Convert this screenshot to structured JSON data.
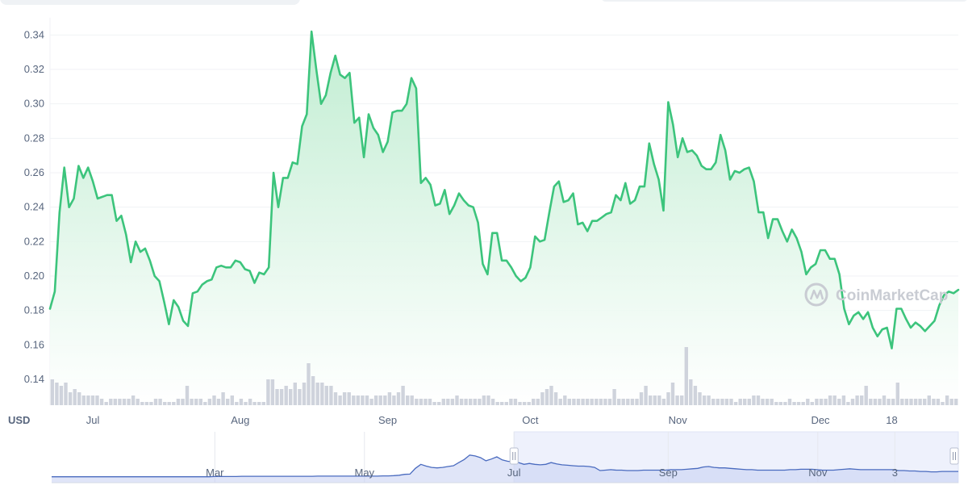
{
  "chart_data": {
    "type": "area",
    "currency_label": "USD",
    "watermark": "CoinMarketCap",
    "colors": {
      "line": "#3cc47c",
      "fill_top": "#bdeccf",
      "fill_bottom": "#ffffff",
      "volume": "#cfd3dc",
      "navigator_line": "#4a6bbf",
      "navigator_fill": "#c7d0f3"
    },
    "y_axis": {
      "min": 0.125,
      "max": 0.35,
      "ticks": [
        "0.14",
        "0.16",
        "0.18",
        "0.20",
        "0.22",
        "0.24",
        "0.26",
        "0.28",
        "0.30",
        "0.32",
        "0.34"
      ]
    },
    "x_axis": {
      "labels": [
        {
          "text": "Jul",
          "index": 9
        },
        {
          "text": "Aug",
          "index": 40
        },
        {
          "text": "Sep",
          "index": 71
        },
        {
          "text": "Oct",
          "index": 101
        },
        {
          "text": "Nov",
          "index": 132
        },
        {
          "text": "Dec",
          "index": 162
        },
        {
          "text": "18",
          "index": 177
        }
      ]
    },
    "grid": "horizontal",
    "series": [
      {
        "values": [
          0.181,
          0.191,
          0.237,
          0.263,
          0.24,
          0.245,
          0.264,
          0.257,
          0.263,
          0.255,
          0.245,
          0.246,
          0.247,
          0.247,
          0.232,
          0.235,
          0.224,
          0.208,
          0.22,
          0.214,
          0.216,
          0.209,
          0.2,
          0.197,
          0.185,
          0.172,
          0.186,
          0.182,
          0.174,
          0.171,
          0.19,
          0.191,
          0.195,
          0.197,
          0.198,
          0.205,
          0.206,
          0.205,
          0.205,
          0.209,
          0.208,
          0.204,
          0.203,
          0.196,
          0.202,
          0.201,
          0.205,
          0.26,
          0.24,
          0.257,
          0.257,
          0.266,
          0.265,
          0.287,
          0.294,
          0.342,
          0.32,
          0.3,
          0.305,
          0.318,
          0.328,
          0.317,
          0.315,
          0.318,
          0.289,
          0.292,
          0.269,
          0.294,
          0.286,
          0.282,
          0.272,
          0.278,
          0.295,
          0.296,
          0.296,
          0.3,
          0.315,
          0.309,
          0.254,
          0.257,
          0.253,
          0.241,
          0.242,
          0.25,
          0.236,
          0.241,
          0.248,
          0.244,
          0.241,
          0.24,
          0.231,
          0.207,
          0.201,
          0.225,
          0.225,
          0.209,
          0.209,
          0.205,
          0.2,
          0.197,
          0.199,
          0.205,
          0.223,
          0.22,
          0.221,
          0.237,
          0.252,
          0.255,
          0.243,
          0.244,
          0.248,
          0.23,
          0.231,
          0.226,
          0.232,
          0.232,
          0.234,
          0.236,
          0.237,
          0.247,
          0.244,
          0.254,
          0.242,
          0.244,
          0.252,
          0.252,
          0.277,
          0.265,
          0.256,
          0.238,
          0.301,
          0.288,
          0.269,
          0.28,
          0.272,
          0.273,
          0.27,
          0.264,
          0.262,
          0.262,
          0.266,
          0.282,
          0.273,
          0.256,
          0.261,
          0.26,
          0.262,
          0.263,
          0.255,
          0.237,
          0.237,
          0.222,
          0.233,
          0.233,
          0.226,
          0.22,
          0.227,
          0.222,
          0.214,
          0.201,
          0.205,
          0.207,
          0.215,
          0.215,
          0.21,
          0.21,
          0.201,
          0.181,
          0.172,
          0.177,
          0.179,
          0.175,
          0.179,
          0.17,
          0.165,
          0.169,
          0.17,
          0.158,
          0.181,
          0.181,
          0.175,
          0.17,
          0.173,
          0.171,
          0.168,
          0.171,
          0.174,
          0.183,
          0.189,
          0.191,
          0.19,
          0.192
        ]
      }
    ],
    "volume": {
      "values": [
        8,
        7,
        6,
        7,
        4,
        5,
        4,
        3,
        3,
        3,
        3,
        2,
        1,
        2,
        2,
        2,
        2,
        2,
        3,
        2,
        1,
        1,
        1,
        2,
        2,
        1,
        1,
        1,
        2,
        2,
        6,
        2,
        2,
        2,
        1,
        2,
        3,
        2,
        4,
        2,
        3,
        1,
        2,
        1,
        2,
        1,
        1,
        1,
        8,
        8,
        5,
        5,
        6,
        5,
        7,
        5,
        7,
        13,
        9,
        7,
        7,
        6,
        6,
        4,
        3,
        4,
        4,
        3,
        3,
        3,
        3,
        2,
        3,
        3,
        3,
        4,
        3,
        4,
        6,
        3,
        3,
        2,
        2,
        2,
        2,
        1,
        1,
        2,
        2,
        2,
        3,
        2,
        2,
        2,
        2,
        2,
        3,
        3,
        2,
        1,
        1,
        1,
        2,
        2,
        1,
        1,
        1,
        2,
        2,
        4,
        5,
        6,
        4,
        2,
        3,
        2,
        2,
        2,
        2,
        2,
        2,
        2,
        2,
        2,
        2,
        5,
        2,
        2,
        2,
        2,
        2,
        4,
        6,
        3,
        3,
        3,
        2,
        4,
        7,
        3,
        3,
        18,
        8,
        6,
        4,
        3,
        3,
        2,
        2,
        2,
        2,
        2,
        1,
        2,
        2,
        2,
        3,
        3,
        2,
        2,
        2,
        1,
        1,
        1,
        2,
        1,
        1,
        1,
        2,
        1,
        2,
        2,
        2,
        3,
        3,
        2,
        3,
        1,
        2,
        3,
        3,
        6,
        2,
        2,
        2,
        3,
        2,
        2,
        7,
        2,
        2,
        2,
        2,
        2,
        2,
        3,
        2,
        2,
        1,
        3,
        2,
        2
      ]
    },
    "navigator": {
      "labels": [
        {
          "text": "Mar",
          "pos": 0.18
        },
        {
          "text": "May",
          "pos": 0.345
        },
        {
          "text": "Jul",
          "pos": 0.51
        },
        {
          "text": "Sep",
          "pos": 0.68
        },
        {
          "text": "Nov",
          "pos": 0.845
        },
        {
          "text": "3",
          "pos": 0.93
        }
      ],
      "selection": [
        0.51,
        1.0
      ],
      "values": [
        0.06,
        0.06,
        0.06,
        0.06,
        0.06,
        0.06,
        0.06,
        0.06,
        0.06,
        0.06,
        0.06,
        0.06,
        0.06,
        0.06,
        0.06,
        0.06,
        0.06,
        0.06,
        0.06,
        0.06,
        0.06,
        0.06,
        0.06,
        0.06,
        0.06,
        0.06,
        0.06,
        0.06,
        0.06,
        0.06,
        0.065,
        0.065,
        0.065,
        0.065,
        0.065,
        0.07,
        0.07,
        0.07,
        0.07,
        0.07,
        0.07,
        0.07,
        0.07,
        0.07,
        0.07,
        0.07,
        0.07,
        0.07,
        0.07,
        0.075,
        0.075,
        0.075,
        0.075,
        0.075,
        0.075,
        0.075,
        0.075,
        0.075,
        0.075,
        0.075,
        0.075,
        0.08,
        0.08,
        0.085,
        0.095,
        0.115,
        0.12,
        0.25,
        0.34,
        0.3,
        0.27,
        0.26,
        0.27,
        0.29,
        0.31,
        0.38,
        0.45,
        0.55,
        0.53,
        0.49,
        0.42,
        0.46,
        0.51,
        0.44,
        0.41,
        0.4,
        0.38,
        0.34,
        0.36,
        0.34,
        0.33,
        0.34,
        0.38,
        0.35,
        0.33,
        0.32,
        0.31,
        0.3,
        0.3,
        0.29,
        0.27,
        0.2,
        0.21,
        0.22,
        0.21,
        0.21,
        0.2,
        0.2,
        0.2,
        0.21,
        0.21,
        0.21,
        0.21,
        0.21,
        0.22,
        0.22,
        0.22,
        0.23,
        0.24,
        0.25,
        0.28,
        0.29,
        0.27,
        0.26,
        0.26,
        0.25,
        0.24,
        0.23,
        0.22,
        0.22,
        0.21,
        0.21,
        0.21,
        0.21,
        0.21,
        0.21,
        0.22,
        0.22,
        0.23,
        0.23,
        0.23,
        0.22,
        0.21,
        0.21,
        0.21,
        0.22,
        0.23,
        0.24,
        0.23,
        0.22,
        0.22,
        0.22,
        0.22,
        0.22,
        0.22,
        0.22,
        0.2,
        0.2,
        0.19,
        0.19,
        0.18,
        0.18,
        0.17,
        0.17,
        0.18,
        0.18,
        0.18,
        0.18
      ]
    }
  }
}
